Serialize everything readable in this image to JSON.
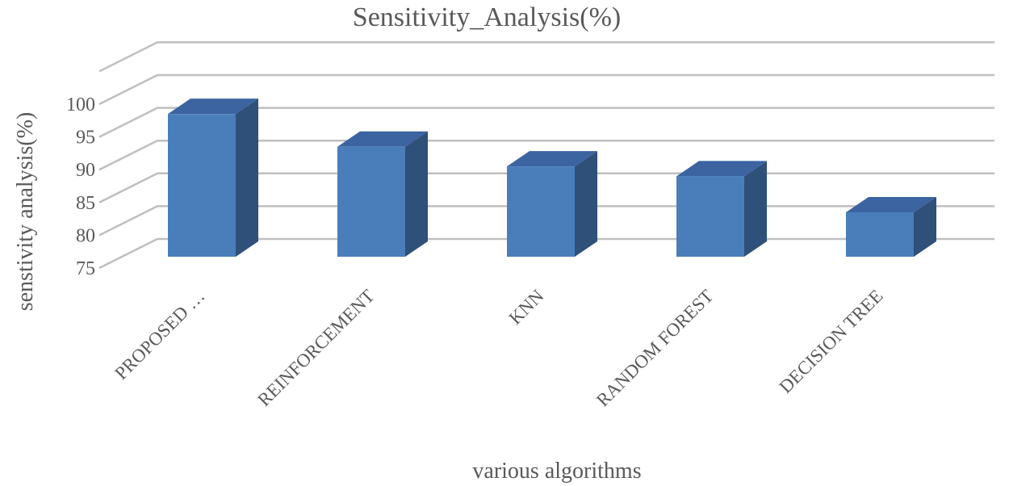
{
  "chart_data": {
    "type": "bar",
    "title": "Sensitivity_Analysis(%)",
    "xlabel": "various algorithms",
    "ylabel": "senstivity analysis(%)",
    "categories": [
      "PROPOSED …",
      "REINFORCEMENT",
      "KNN",
      "RANDOM FOREST",
      "DECISION TREE"
    ],
    "values": [
      98.5,
      93.5,
      90.5,
      89,
      83.5
    ],
    "ylim": [
      75,
      100
    ],
    "yticks": [
      "75",
      "80",
      "85",
      "90",
      "95",
      "100"
    ],
    "grid": true,
    "legend": "none",
    "style": "3d-column",
    "colors": {
      "front": "#4a7ebb",
      "top": "#3b64a0",
      "side": "#2f5079"
    }
  }
}
